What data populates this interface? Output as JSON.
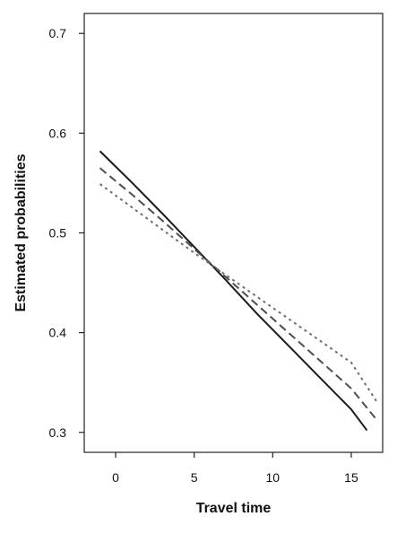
{
  "chart_data": {
    "type": "line",
    "title": "",
    "xlabel": "Travel time",
    "ylabel": "Estimated probabilities",
    "xlim": [
      -2,
      17
    ],
    "ylim": [
      0.28,
      0.72
    ],
    "x_ticks": [
      0,
      5,
      10,
      15
    ],
    "y_ticks": [
      0.3,
      0.4,
      0.5,
      0.6,
      0.7
    ],
    "x_tick_labels": [
      "0",
      "5",
      "10",
      "15"
    ],
    "y_tick_labels": [
      "0.3",
      "0.4",
      "0.5",
      "0.6",
      "0.7"
    ],
    "grid": false,
    "legend": "none",
    "series": [
      {
        "line_style": "solid",
        "color": "#1a1a1a",
        "x": [
          -1,
          1,
          3,
          5,
          7,
          9,
          11,
          13,
          15,
          16
        ],
        "y": [
          0.582,
          0.551,
          0.519,
          0.486,
          0.453,
          0.419,
          0.387,
          0.355,
          0.323,
          0.302
        ]
      },
      {
        "line_style": "dashed",
        "color": "#4d4d4d",
        "x": [
          -1,
          1,
          3,
          5,
          7,
          9,
          11,
          13,
          15,
          16.7
        ],
        "y": [
          0.565,
          0.539,
          0.512,
          0.484,
          0.456,
          0.428,
          0.4,
          0.372,
          0.344,
          0.311
        ]
      },
      {
        "line_style": "dotted",
        "color": "#6e6e6e",
        "x": [
          -1,
          1,
          3,
          5,
          7,
          9,
          11,
          13,
          15,
          16.7
        ],
        "y": [
          0.549,
          0.526,
          0.503,
          0.48,
          0.458,
          0.436,
          0.414,
          0.392,
          0.37,
          0.329
        ]
      }
    ]
  }
}
